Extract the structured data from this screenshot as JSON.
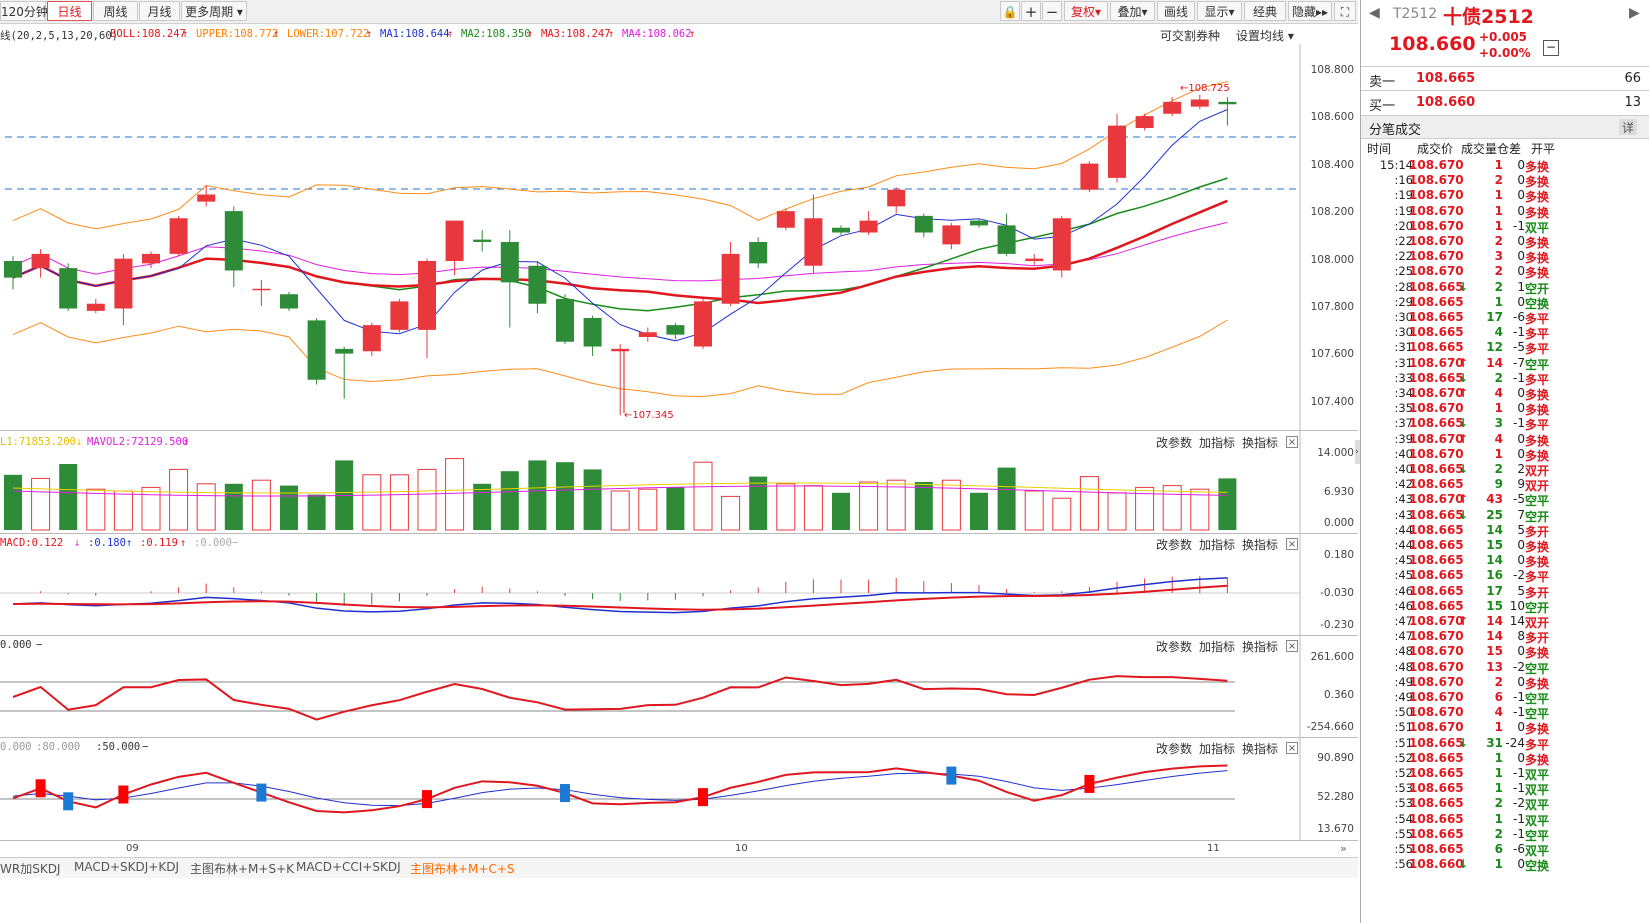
{
  "toolbar": {
    "periods": [
      "120分钟",
      "日线",
      "周线",
      "月线",
      "更多周期"
    ],
    "right_buttons": [
      "复权",
      "叠加",
      "画线",
      "显示",
      "经典",
      "隐藏"
    ]
  },
  "legend": {
    "boll_prefix": "线(20,2,5,13,20,60)",
    "boll": "BOLL:108.247",
    "upper": "UPPER:108.772",
    "lower": "LOWER:107.722",
    "ma1": "MA1:108.644",
    "ma2": "MA2:108.350",
    "ma3": "MA3:108.247",
    "ma4": "MA4:108.062",
    "link1": "可交割券种",
    "link2": "设置均线"
  },
  "main_chart": {
    "y_ticks": [
      "108.800",
      "108.600",
      "108.400",
      "108.200",
      "108.000",
      "107.800",
      "107.600",
      "107.400"
    ],
    "high_label": "108.725",
    "low_label": "107.345",
    "x_labels": [
      "09",
      "10",
      "11"
    ]
  },
  "vol_panel": {
    "label1": "L1:71853.200",
    "label2": "MAVOL2:72129.500",
    "y_ticks": [
      "14.000",
      "6.930",
      "0.000"
    ]
  },
  "macd_panel": {
    "label1": "MACD:0.122",
    "label2": ":0.180",
    "label3": ":0.119",
    "label4": ":0.000",
    "y_ticks": [
      "0.180",
      "-0.030",
      "-0.230"
    ]
  },
  "cci_panel": {
    "label1": "0.000",
    "y_ticks": [
      "261.600",
      "0.360",
      "-254.660"
    ]
  },
  "kdj_panel": {
    "label1": "0.000",
    "label2": ":80.000",
    "label3": ":50.000",
    "y_ticks": [
      "90.890",
      "52.280",
      "13.670"
    ]
  },
  "panel_buttons": {
    "param": "改参数",
    "add": "加指标",
    "swap": "换指标"
  },
  "bottom_tabs": [
    "WR加SKDJ",
    "MACD+SKDJ+KDJ",
    "主图布林+M+S+K",
    "MACD+CCI+SKDJ",
    "主图布林+M+C+S"
  ],
  "quote": {
    "code": "T2512",
    "name": "十债2512",
    "price": "108.660",
    "change": "+0.005",
    "change_pct": "+0.00%",
    "sell_label": "卖一",
    "sell_price": "108.665",
    "sell_vol": "66",
    "buy_label": "买一",
    "buy_price": "108.660",
    "buy_vol": "13",
    "ticks_title": "分笔成交",
    "detail": "详",
    "headers": [
      "时间",
      "成交价",
      "成交量",
      "仓差",
      "开平"
    ]
  },
  "ticks": [
    {
      "t": "15:14",
      "p": "108.670",
      "a": "",
      "v": "1",
      "d": "0",
      "k": "多换"
    },
    {
      "t": ":16",
      "p": "108.670",
      "a": "",
      "v": "2",
      "d": "0",
      "k": "多换"
    },
    {
      "t": ":19",
      "p": "108.670",
      "a": "",
      "v": "1",
      "d": "0",
      "k": "多换"
    },
    {
      "t": ":19",
      "p": "108.670",
      "a": "",
      "v": "1",
      "d": "0",
      "k": "多换"
    },
    {
      "t": ":20",
      "p": "108.670",
      "a": "",
      "v": "1",
      "d": "-1",
      "k": "双平"
    },
    {
      "t": ":22",
      "p": "108.670",
      "a": "",
      "v": "2",
      "d": "0",
      "k": "多换"
    },
    {
      "t": ":22",
      "p": "108.670",
      "a": "",
      "v": "3",
      "d": "0",
      "k": "多换"
    },
    {
      "t": ":25",
      "p": "108.670",
      "a": "",
      "v": "2",
      "d": "0",
      "k": "多换"
    },
    {
      "t": ":28",
      "p": "108.665",
      "a": "↓",
      "v": "2",
      "d": "1",
      "k": "空开"
    },
    {
      "t": ":29",
      "p": "108.665",
      "a": "",
      "v": "1",
      "d": "0",
      "k": "空换"
    },
    {
      "t": ":30",
      "p": "108.665",
      "a": "",
      "v": "17",
      "d": "-6",
      "k": "多平"
    },
    {
      "t": ":30",
      "p": "108.665",
      "a": "",
      "v": "4",
      "d": "-1",
      "k": "多平"
    },
    {
      "t": ":31",
      "p": "108.665",
      "a": "",
      "v": "12",
      "d": "-5",
      "k": "多平"
    },
    {
      "t": ":31",
      "p": "108.670",
      "a": "↑",
      "v": "14",
      "d": "-7",
      "k": "空平"
    },
    {
      "t": ":33",
      "p": "108.665",
      "a": "↓",
      "v": "2",
      "d": "-1",
      "k": "多平"
    },
    {
      "t": ":34",
      "p": "108.670",
      "a": "↑",
      "v": "4",
      "d": "0",
      "k": "多换"
    },
    {
      "t": ":35",
      "p": "108.670",
      "a": "",
      "v": "1",
      "d": "0",
      "k": "多换"
    },
    {
      "t": ":37",
      "p": "108.665",
      "a": "↓",
      "v": "3",
      "d": "-1",
      "k": "多平"
    },
    {
      "t": ":39",
      "p": "108.670",
      "a": "↑",
      "v": "4",
      "d": "0",
      "k": "多换"
    },
    {
      "t": ":40",
      "p": "108.670",
      "a": "",
      "v": "1",
      "d": "0",
      "k": "多换"
    },
    {
      "t": ":40",
      "p": "108.665",
      "a": "↓",
      "v": "2",
      "d": "2",
      "k": "双开"
    },
    {
      "t": ":42",
      "p": "108.665",
      "a": "",
      "v": "9",
      "d": "9",
      "k": "双开"
    },
    {
      "t": ":43",
      "p": "108.670",
      "a": "↑",
      "v": "43",
      "d": "-5",
      "k": "空平"
    },
    {
      "t": ":43",
      "p": "108.665",
      "a": "↓",
      "v": "25",
      "d": "7",
      "k": "空开"
    },
    {
      "t": ":44",
      "p": "108.665",
      "a": "",
      "v": "14",
      "d": "5",
      "k": "多开"
    },
    {
      "t": ":44",
      "p": "108.665",
      "a": "",
      "v": "15",
      "d": "0",
      "k": "多换"
    },
    {
      "t": ":45",
      "p": "108.665",
      "a": "",
      "v": "14",
      "d": "0",
      "k": "多换"
    },
    {
      "t": ":45",
      "p": "108.665",
      "a": "",
      "v": "16",
      "d": "-2",
      "k": "多平"
    },
    {
      "t": ":46",
      "p": "108.665",
      "a": "",
      "v": "17",
      "d": "5",
      "k": "多开"
    },
    {
      "t": ":46",
      "p": "108.665",
      "a": "",
      "v": "15",
      "d": "10",
      "k": "空开"
    },
    {
      "t": ":47",
      "p": "108.670",
      "a": "↑",
      "v": "14",
      "d": "14",
      "k": "双开"
    },
    {
      "t": ":47",
      "p": "108.670",
      "a": "",
      "v": "14",
      "d": "8",
      "k": "多开"
    },
    {
      "t": ":48",
      "p": "108.670",
      "a": "",
      "v": "15",
      "d": "0",
      "k": "多换"
    },
    {
      "t": ":48",
      "p": "108.670",
      "a": "",
      "v": "13",
      "d": "-2",
      "k": "空平"
    },
    {
      "t": ":49",
      "p": "108.670",
      "a": "",
      "v": "2",
      "d": "0",
      "k": "多换"
    },
    {
      "t": ":49",
      "p": "108.670",
      "a": "",
      "v": "6",
      "d": "-1",
      "k": "空平"
    },
    {
      "t": ":50",
      "p": "108.670",
      "a": "",
      "v": "4",
      "d": "-1",
      "k": "空平"
    },
    {
      "t": ":51",
      "p": "108.670",
      "a": "",
      "v": "1",
      "d": "0",
      "k": "多换"
    },
    {
      "t": ":51",
      "p": "108.665",
      "a": "↓",
      "v": "31",
      "d": "-24",
      "k": "多平"
    },
    {
      "t": ":52",
      "p": "108.665",
      "a": "",
      "v": "1",
      "d": "0",
      "k": "多换"
    },
    {
      "t": ":52",
      "p": "108.665",
      "a": "",
      "v": "1",
      "d": "-1",
      "k": "双平"
    },
    {
      "t": ":53",
      "p": "108.665",
      "a": "",
      "v": "1",
      "d": "-1",
      "k": "双平"
    },
    {
      "t": ":53",
      "p": "108.665",
      "a": "",
      "v": "2",
      "d": "-2",
      "k": "双平"
    },
    {
      "t": ":54",
      "p": "108.665",
      "a": "",
      "v": "1",
      "d": "-1",
      "k": "双平"
    },
    {
      "t": ":55",
      "p": "108.665",
      "a": "",
      "v": "2",
      "d": "-1",
      "k": "空平"
    },
    {
      "t": ":55",
      "p": "108.665",
      "a": "",
      "v": "6",
      "d": "-6",
      "k": "双平"
    },
    {
      "t": ":56",
      "p": "108.660",
      "a": "↓",
      "v": "1",
      "d": "0",
      "k": "空换"
    }
  ],
  "chart_data": {
    "type": "candlestick",
    "ylim": [
      107.3,
      108.85
    ],
    "candles": [
      {
        "o": 108.0,
        "c": 107.93,
        "h": 108.02,
        "l": 107.88
      },
      {
        "o": 107.97,
        "c": 108.03,
        "h": 108.05,
        "l": 107.93
      },
      {
        "o": 107.97,
        "c": 107.8,
        "h": 107.99,
        "l": 107.79
      },
      {
        "o": 107.79,
        "c": 107.82,
        "h": 107.84,
        "l": 107.78
      },
      {
        "o": 107.8,
        "c": 108.01,
        "h": 108.03,
        "l": 107.73
      },
      {
        "o": 107.99,
        "c": 108.03,
        "h": 108.04,
        "l": 107.97
      },
      {
        "o": 108.03,
        "c": 108.18,
        "h": 108.19,
        "l": 108.02
      },
      {
        "o": 108.25,
        "c": 108.28,
        "h": 108.32,
        "l": 108.23
      },
      {
        "o": 108.21,
        "c": 107.96,
        "h": 108.23,
        "l": 107.89
      },
      {
        "o": 107.88,
        "c": 107.88,
        "h": 107.92,
        "l": 107.81
      },
      {
        "o": 107.86,
        "c": 107.8,
        "h": 107.87,
        "l": 107.79
      },
      {
        "o": 107.75,
        "c": 107.5,
        "h": 107.76,
        "l": 107.48
      },
      {
        "o": 107.63,
        "c": 107.61,
        "h": 107.64,
        "l": 107.42
      },
      {
        "o": 107.62,
        "c": 107.73,
        "h": 107.74,
        "l": 107.6
      },
      {
        "o": 107.71,
        "c": 107.83,
        "h": 107.84,
        "l": 107.7
      },
      {
        "o": 107.71,
        "c": 108.0,
        "h": 108.01,
        "l": 107.59
      },
      {
        "o": 108.0,
        "c": 108.17,
        "h": 108.17,
        "l": 107.94
      },
      {
        "o": 108.09,
        "c": 108.08,
        "h": 108.13,
        "l": 108.04
      },
      {
        "o": 108.08,
        "c": 107.91,
        "h": 108.13,
        "l": 107.72
      },
      {
        "o": 107.98,
        "c": 107.82,
        "h": 108.0,
        "l": 107.78
      },
      {
        "o": 107.84,
        "c": 107.66,
        "h": 107.86,
        "l": 107.65
      },
      {
        "o": 107.76,
        "c": 107.64,
        "h": 107.77,
        "l": 107.6
      },
      {
        "o": 107.62,
        "c": 107.63,
        "h": 107.65,
        "l": 107.35
      },
      {
        "o": 107.68,
        "c": 107.7,
        "h": 107.72,
        "l": 107.66
      },
      {
        "o": 107.73,
        "c": 107.69,
        "h": 107.74,
        "l": 107.67
      },
      {
        "o": 107.64,
        "c": 107.83,
        "h": 107.84,
        "l": 107.63
      },
      {
        "o": 107.82,
        "c": 108.03,
        "h": 108.08,
        "l": 107.81
      },
      {
        "o": 108.08,
        "c": 107.99,
        "h": 108.1,
        "l": 107.97
      },
      {
        "o": 108.14,
        "c": 108.21,
        "h": 108.22,
        "l": 108.13
      },
      {
        "o": 107.98,
        "c": 108.18,
        "h": 108.28,
        "l": 107.95
      },
      {
        "o": 108.14,
        "c": 108.12,
        "h": 108.15,
        "l": 108.11
      },
      {
        "o": 108.12,
        "c": 108.17,
        "h": 108.21,
        "l": 108.11
      },
      {
        "o": 108.23,
        "c": 108.3,
        "h": 108.31,
        "l": 108.2
      },
      {
        "o": 108.19,
        "c": 108.12,
        "h": 108.2,
        "l": 108.1
      },
      {
        "o": 108.07,
        "c": 108.15,
        "h": 108.16,
        "l": 108.05
      },
      {
        "o": 108.17,
        "c": 108.15,
        "h": 108.18,
        "l": 108.14
      },
      {
        "o": 108.15,
        "c": 108.03,
        "h": 108.2,
        "l": 108.02
      },
      {
        "o": 108.0,
        "c": 108.01,
        "h": 108.03,
        "l": 107.98
      },
      {
        "o": 107.96,
        "c": 108.18,
        "h": 108.19,
        "l": 107.93
      },
      {
        "o": 108.3,
        "c": 108.41,
        "h": 108.42,
        "l": 108.29
      },
      {
        "o": 108.35,
        "c": 108.57,
        "h": 108.62,
        "l": 108.33
      },
      {
        "o": 108.56,
        "c": 108.61,
        "h": 108.62,
        "l": 108.55
      },
      {
        "o": 108.62,
        "c": 108.67,
        "h": 108.69,
        "l": 108.61
      },
      {
        "o": 108.65,
        "c": 108.68,
        "h": 108.7,
        "l": 108.64
      },
      {
        "o": 108.67,
        "c": 108.66,
        "h": 108.69,
        "l": 108.57
      }
    ]
  }
}
